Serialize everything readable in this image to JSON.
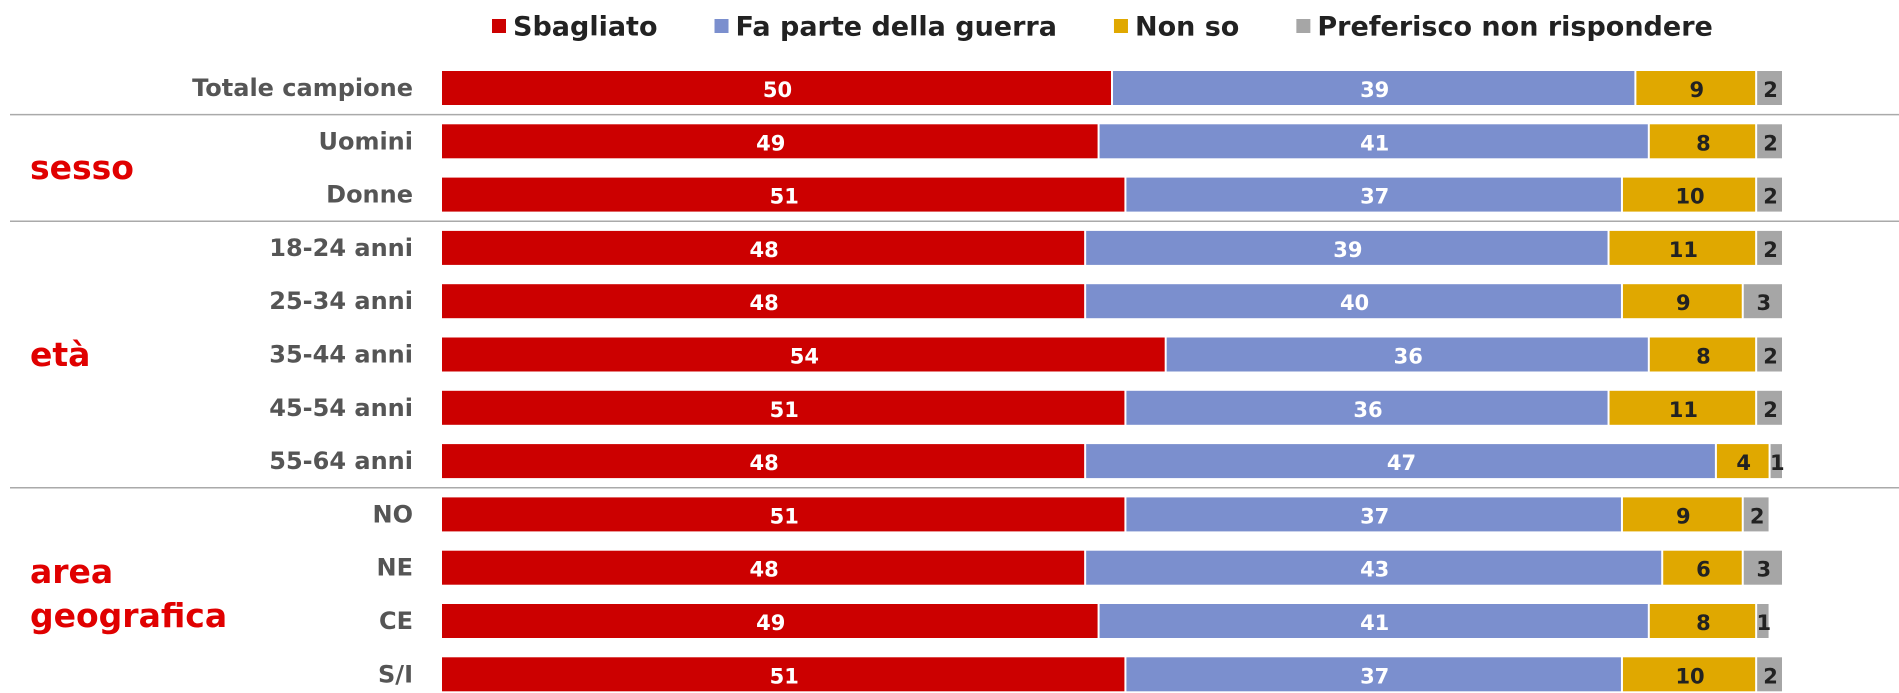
{
  "chart_data": {
    "type": "stacked-bar-horizontal",
    "categories": [
      "Totale campione",
      "Uomini",
      "Donne",
      "18-24 anni",
      "25-34 anni",
      "35-44 anni",
      "45-54 anni",
      "55-64 anni",
      "NO",
      "NE",
      "CE",
      "S/I"
    ],
    "groups": [
      "sesso",
      "età",
      "area geografica"
    ],
    "xlim": [
      0,
      100
    ],
    "series": [
      {
        "name": "Sbagliato",
        "color": "#cc0000",
        "values": [
          50,
          49,
          51,
          48,
          48,
          54,
          51,
          48,
          51,
          48,
          49,
          51
        ]
      },
      {
        "name": "Fa parte della guerra",
        "color": "#7b8fce",
        "values": [
          39,
          41,
          37,
          39,
          40,
          36,
          36,
          47,
          37,
          43,
          41,
          37
        ]
      },
      {
        "name": "Non so",
        "color": "#e0a800",
        "values": [
          9,
          8,
          10,
          11,
          9,
          8,
          11,
          4,
          9,
          6,
          8,
          10
        ]
      },
      {
        "name": "Preferisco non rispondere",
        "color": "#a6a6a6",
        "values": [
          2,
          2,
          2,
          2,
          3,
          2,
          2,
          1,
          2,
          3,
          1,
          2
        ]
      }
    ]
  }
}
